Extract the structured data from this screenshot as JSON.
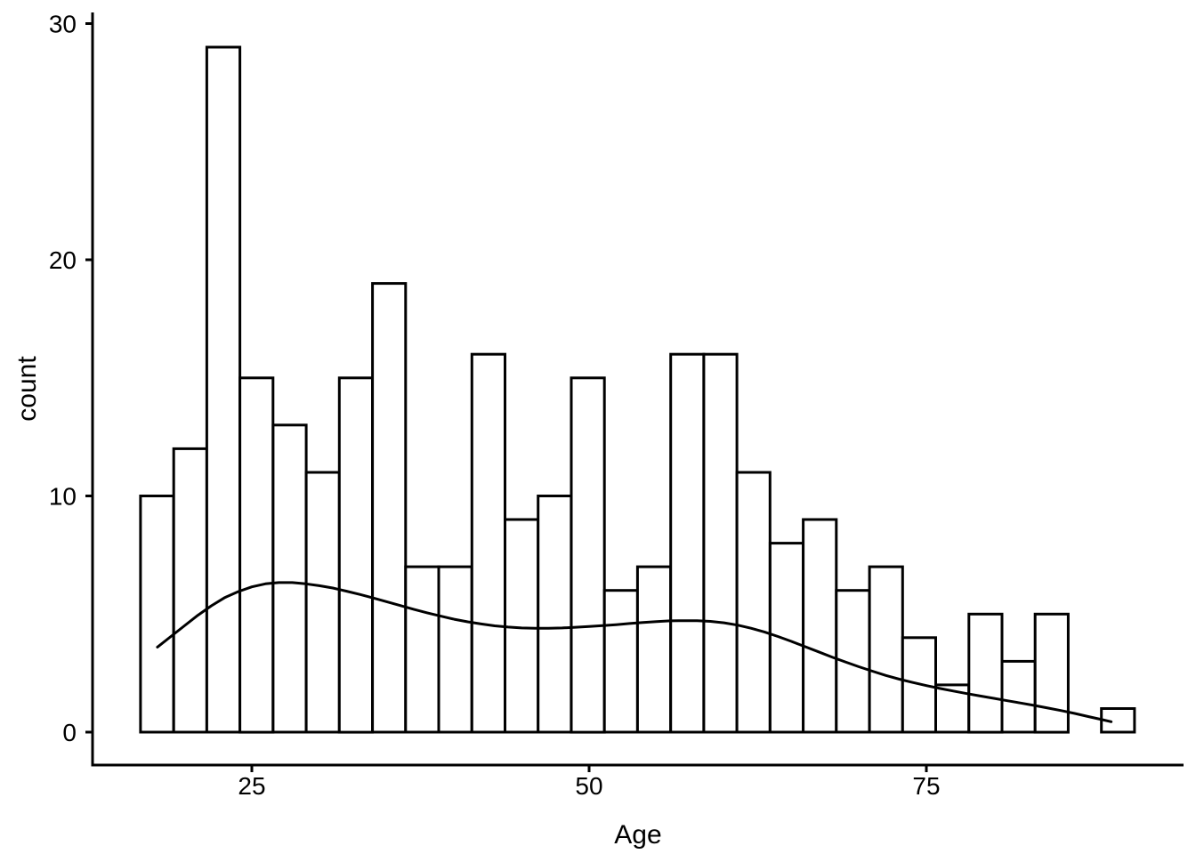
{
  "figure": {
    "background": "#ffffff",
    "ink_color": "#000000",
    "bar_fill": "#ffffff"
  },
  "chart_data": {
    "type": "bar",
    "subtype": "histogram-with-smooth-curve",
    "title": "",
    "xlabel": "Age",
    "ylabel": "count",
    "x_ticks": [
      25,
      50,
      75
    ],
    "y_ticks": [
      0,
      10,
      20,
      30
    ],
    "x_range": [
      13.2,
      94.1
    ],
    "y_range": [
      -1.4,
      30.5
    ],
    "grid": "off",
    "legend": "none",
    "bins": {
      "start": 16.75,
      "width": 2.456,
      "counts": [
        10,
        12,
        29,
        15,
        13,
        11,
        15,
        19,
        7,
        7,
        16,
        9,
        10,
        15,
        6,
        7,
        16,
        16,
        11,
        8,
        9,
        6,
        7,
        4,
        2,
        5,
        3,
        5,
        0,
        1
      ]
    },
    "curve": {
      "name": "smooth-trend-curve",
      "points": [
        [
          18.0,
          3.6
        ],
        [
          19,
          4.05
        ],
        [
          20,
          4.5
        ],
        [
          21,
          4.95
        ],
        [
          22,
          5.35
        ],
        [
          23,
          5.7
        ],
        [
          24,
          5.95
        ],
        [
          25,
          6.15
        ],
        [
          26,
          6.28
        ],
        [
          27,
          6.33
        ],
        [
          28,
          6.33
        ],
        [
          29,
          6.28
        ],
        [
          30,
          6.2
        ],
        [
          31,
          6.1
        ],
        [
          32,
          5.97
        ],
        [
          33,
          5.83
        ],
        [
          34,
          5.68
        ],
        [
          35,
          5.52
        ],
        [
          36,
          5.36
        ],
        [
          37,
          5.2
        ],
        [
          38,
          5.05
        ],
        [
          39,
          4.91
        ],
        [
          40,
          4.78
        ],
        [
          41,
          4.67
        ],
        [
          42,
          4.58
        ],
        [
          43,
          4.5
        ],
        [
          44,
          4.45
        ],
        [
          45,
          4.41
        ],
        [
          46,
          4.4
        ],
        [
          47,
          4.4
        ],
        [
          48,
          4.41
        ],
        [
          49,
          4.44
        ],
        [
          50,
          4.47
        ],
        [
          51,
          4.51
        ],
        [
          52,
          4.55
        ],
        [
          53,
          4.6
        ],
        [
          54,
          4.64
        ],
        [
          55,
          4.68
        ],
        [
          56,
          4.71
        ],
        [
          57,
          4.72
        ],
        [
          58,
          4.72
        ],
        [
          59,
          4.69
        ],
        [
          60,
          4.63
        ],
        [
          61,
          4.53
        ],
        [
          62,
          4.4
        ],
        [
          63,
          4.24
        ],
        [
          64,
          4.05
        ],
        [
          65,
          3.84
        ],
        [
          66,
          3.62
        ],
        [
          67,
          3.4
        ],
        [
          68,
          3.18
        ],
        [
          69,
          2.97
        ],
        [
          70,
          2.77
        ],
        [
          71,
          2.58
        ],
        [
          72,
          2.4
        ],
        [
          73,
          2.24
        ],
        [
          74,
          2.1
        ],
        [
          75,
          1.97
        ],
        [
          76,
          1.85
        ],
        [
          77,
          1.74
        ],
        [
          78,
          1.63
        ],
        [
          79,
          1.53
        ],
        [
          80,
          1.43
        ],
        [
          81,
          1.33
        ],
        [
          82,
          1.23
        ],
        [
          83,
          1.13
        ],
        [
          84,
          1.02
        ],
        [
          85,
          0.91
        ],
        [
          86,
          0.79
        ],
        [
          87,
          0.66
        ],
        [
          88,
          0.53
        ],
        [
          88.7,
          0.44
        ]
      ]
    }
  }
}
